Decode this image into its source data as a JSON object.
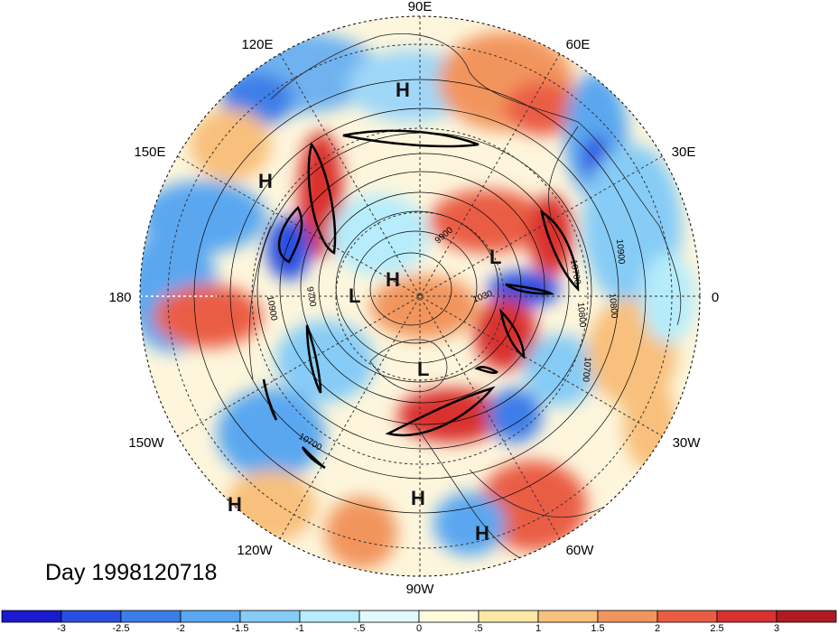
{
  "map": {
    "date_label": "Day 1998120718",
    "longitude_labels": [
      {
        "text": "90E",
        "angle": 90
      },
      {
        "text": "60E",
        "angle": 60
      },
      {
        "text": "30E",
        "angle": 30
      },
      {
        "text": "0",
        "angle": 0
      },
      {
        "text": "30W",
        "angle": -30
      },
      {
        "text": "60W",
        "angle": -60
      },
      {
        "text": "90W",
        "angle": -90
      },
      {
        "text": "120W",
        "angle": -120
      },
      {
        "text": "150W",
        "angle": -150
      },
      {
        "text": "180",
        "angle": 180
      },
      {
        "text": "150E",
        "angle": 150
      },
      {
        "text": "120E",
        "angle": 120
      }
    ],
    "pressure_centers": [
      {
        "type": "H"
      },
      {
        "type": "H"
      },
      {
        "type": "H"
      },
      {
        "type": "H"
      },
      {
        "type": "H"
      },
      {
        "type": "H"
      },
      {
        "type": "L"
      },
      {
        "type": "L"
      },
      {
        "type": "L"
      }
    ],
    "contour_labels": [
      "10700",
      "10800",
      "10900",
      "10700",
      "10800",
      "9700",
      "10700",
      "9900",
      "1030",
      "10900"
    ]
  },
  "colorbar": {
    "colors": [
      "#1a1acf",
      "#2a4fe0",
      "#3c7ee8",
      "#5aa7f0",
      "#86ccf6",
      "#b6ecfb",
      "#e2f9fc",
      "#fffadb",
      "#fde7a4",
      "#f8c07c",
      "#f2955d",
      "#ea5d44",
      "#d9312f",
      "#b01b22"
    ],
    "tick_labels": [
      "-3",
      "-2.5",
      "-2",
      "-1.5",
      "-1",
      "-.5",
      "0",
      ".5",
      "1",
      "1.5",
      "2",
      "2.5",
      "3"
    ]
  }
}
